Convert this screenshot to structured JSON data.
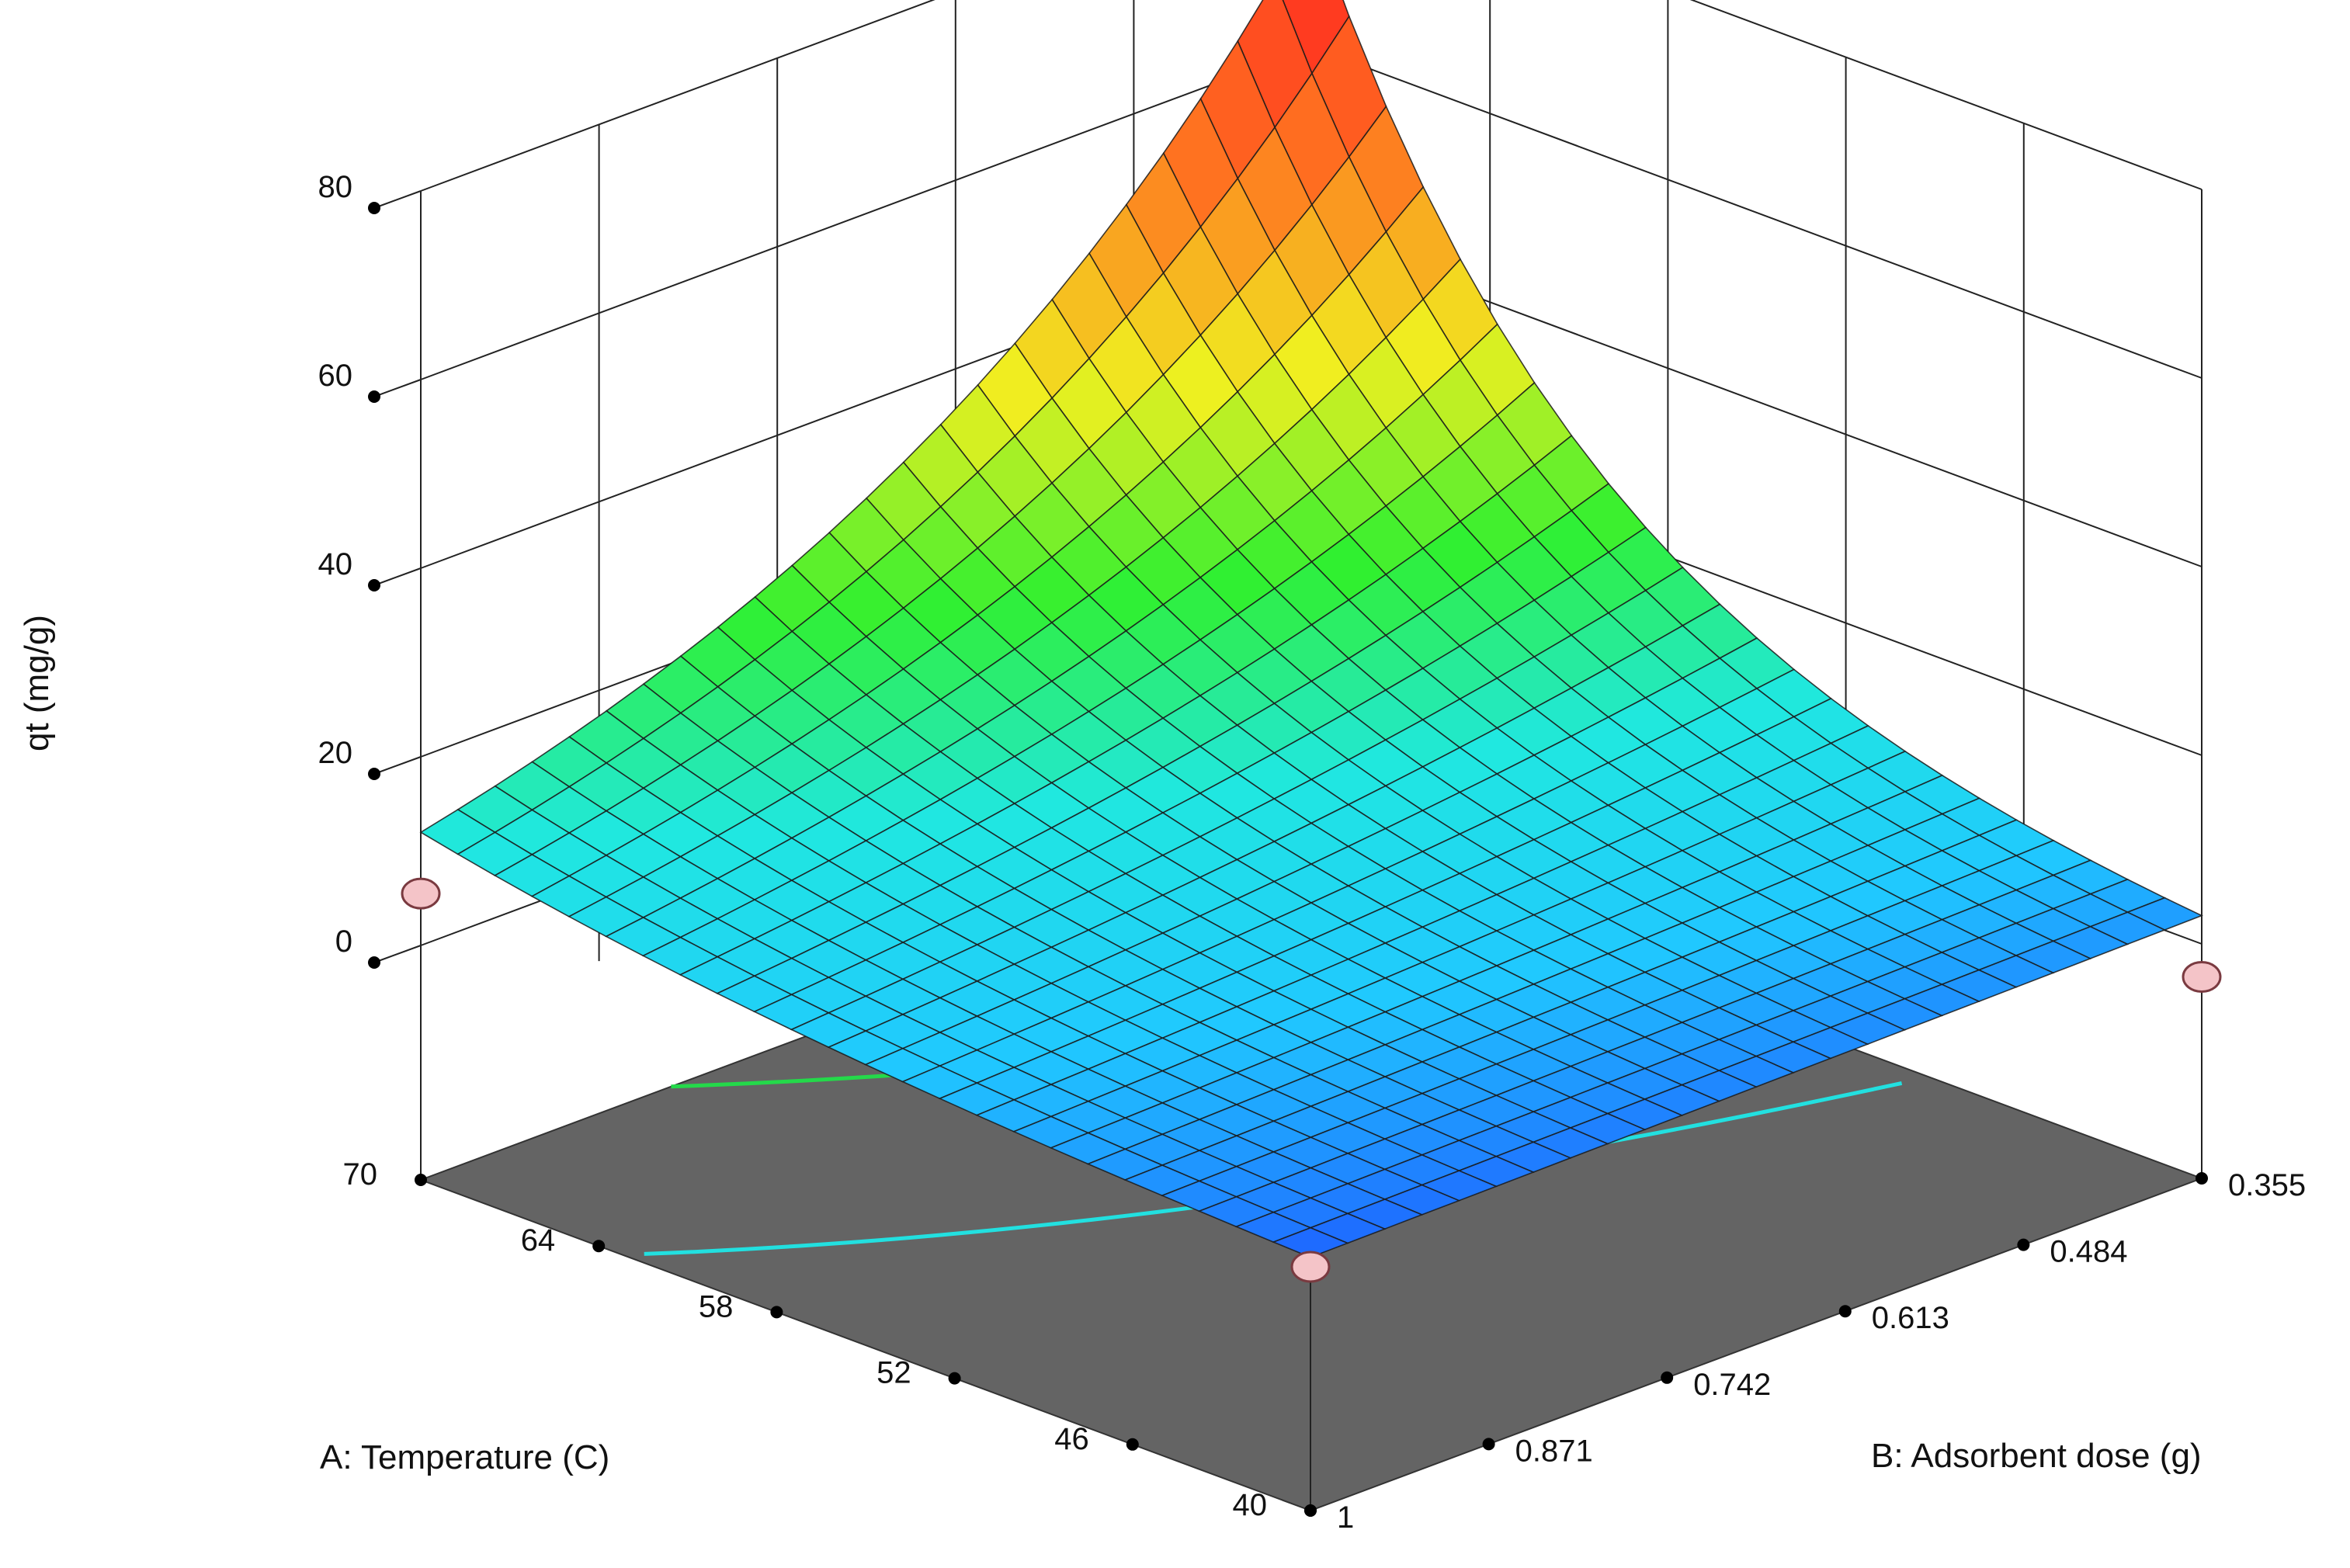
{
  "chart_data": {
    "type": "surface",
    "title": "",
    "x_axis": {
      "label": "A: Temperature (C)",
      "ticks": [
        "70",
        "64",
        "58",
        "52",
        "46",
        "40"
      ],
      "range": [
        40,
        70
      ]
    },
    "y_axis": {
      "label": "B: Adsorbent dose  (g)",
      "ticks": [
        "0.355",
        "0.484",
        "0.613",
        "0.742",
        "0.871",
        "1"
      ],
      "range": [
        0.355,
        1
      ]
    },
    "z_axis": {
      "label": "qt (mg/g)",
      "ticks": [
        "0",
        "20",
        "40",
        "60",
        "80"
      ],
      "range": [
        0,
        80
      ]
    },
    "corner_values": [
      {
        "temperature": 70,
        "dose": 0.355,
        "qt": 74
      },
      {
        "temperature": 70,
        "dose": 1,
        "qt": 12
      },
      {
        "temperature": 40,
        "dose": 0.355,
        "qt": 3
      },
      {
        "temperature": 40,
        "dose": 1,
        "qt": 2
      }
    ],
    "design_points": [
      {
        "temperature": 70,
        "dose": 1
      },
      {
        "temperature": 40,
        "dose": 0.355
      },
      {
        "temperature": 40,
        "dose": 1
      }
    ],
    "floor_color": "#646464",
    "contour_colors": [
      "#24d94a",
      "#22e0e0"
    ],
    "colormap": [
      "#1e5aff",
      "#20c8ff",
      "#20e8e0",
      "#30f030",
      "#f0f020",
      "#ff7020",
      "#ff2020"
    ],
    "grid": true
  }
}
